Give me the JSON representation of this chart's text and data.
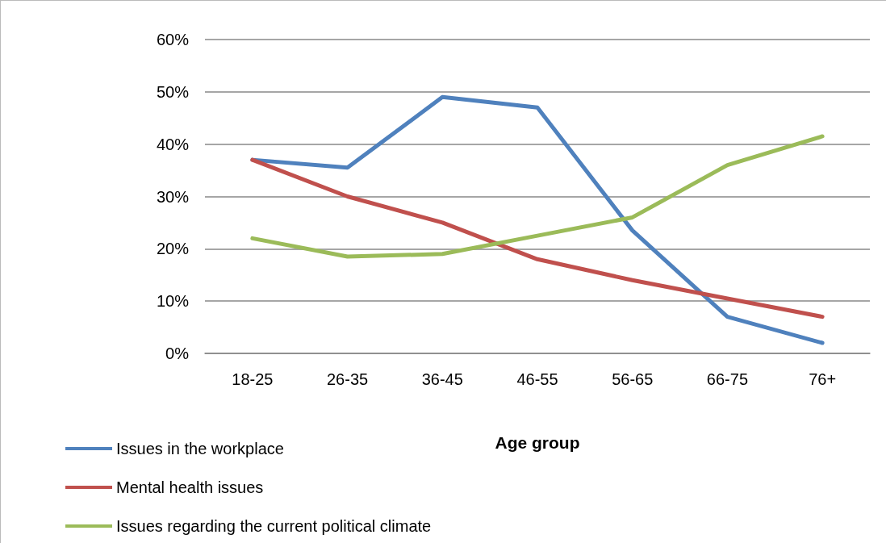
{
  "chart_data": {
    "type": "line",
    "xlabel": "Age group",
    "categories": [
      "18-25",
      "26-35",
      "36-45",
      "46-55",
      "56-65",
      "66-75",
      "76+"
    ],
    "series": [
      {
        "name": "Issues in the workplace",
        "color": "#4f81bd",
        "values": [
          37,
          35.5,
          49,
          47,
          23.5,
          7,
          2
        ]
      },
      {
        "name": "Mental health issues",
        "color": "#c0504d",
        "values": [
          37,
          30,
          25,
          18,
          14,
          10.5,
          7
        ]
      },
      {
        "name": "Issues regarding the current political climate",
        "color": "#9bbb59",
        "values": [
          22,
          18.5,
          19,
          22.5,
          26,
          36,
          41.5
        ]
      }
    ],
    "ylim": [
      0,
      60
    ],
    "yticks": [
      {
        "value": 0,
        "label": "0%"
      },
      {
        "value": 10,
        "label": "10%"
      },
      {
        "value": 20,
        "label": "20%"
      },
      {
        "value": 30,
        "label": "30%"
      },
      {
        "value": 40,
        "label": "40%"
      },
      {
        "value": 50,
        "label": "50%"
      },
      {
        "value": 60,
        "label": "60%"
      }
    ],
    "grid": "y",
    "legend": "bottom left",
    "marker": "none",
    "line_style": "solid"
  }
}
